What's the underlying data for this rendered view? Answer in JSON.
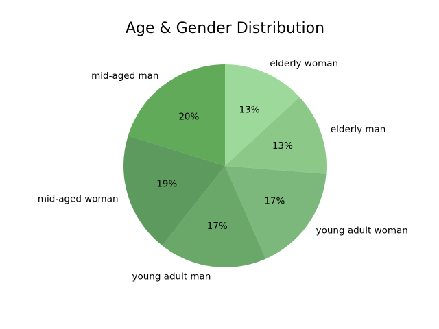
{
  "chart_data": {
    "type": "pie",
    "title": "Age & Gender Distribution",
    "slices": [
      {
        "label": "elderly woman",
        "value": 13,
        "pct_text": "13%",
        "color": "#9dd99b"
      },
      {
        "label": "elderly man",
        "value": 13,
        "pct_text": "13%",
        "color": "#8cc888"
      },
      {
        "label": "young adult woman",
        "value": 17,
        "pct_text": "17%",
        "color": "#7cb87b"
      },
      {
        "label": "young adult man",
        "value": 17,
        "pct_text": "17%",
        "color": "#6aa86a"
      },
      {
        "label": "mid-aged woman",
        "value": 19,
        "pct_text": "19%",
        "color": "#5d9a5e"
      },
      {
        "label": "mid-aged man",
        "value": 20,
        "pct_text": "20%",
        "color": "#61aa5a"
      }
    ],
    "start_angle_deg": 90,
    "direction": "clockwise",
    "legend": "none"
  }
}
